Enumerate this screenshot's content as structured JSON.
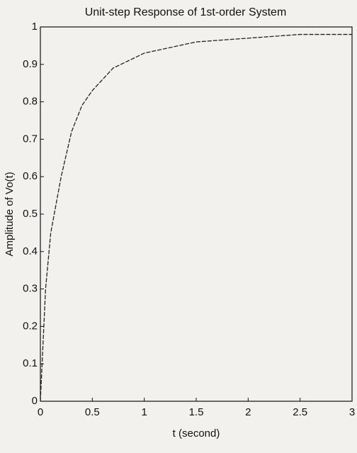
{
  "chart_data": {
    "type": "line",
    "title": "Unit-step Response of 1st-order System",
    "x_label": "t (second)",
    "y_label": "Amplitude of Vo(t)",
    "x": [
      0,
      0.05,
      0.1,
      0.2,
      0.3,
      0.4,
      0.5,
      0.7,
      1,
      1.5,
      2,
      2.5,
      3
    ],
    "values": [
      0,
      0.3,
      0.45,
      0.6,
      0.72,
      0.79,
      0.83,
      0.89,
      0.93,
      0.96,
      0.97,
      0.98,
      0.98
    ],
    "color": "#222222",
    "xlim": [
      0,
      3
    ],
    "ylim": [
      0,
      1
    ],
    "xticks": [
      0,
      0.5,
      1,
      1.5,
      2,
      2.5,
      3
    ],
    "yticks": [
      0,
      0.1,
      0.2,
      0.3,
      0.4,
      0.5,
      0.6,
      0.7,
      0.8,
      0.9,
      1
    ],
    "grid": false
  }
}
